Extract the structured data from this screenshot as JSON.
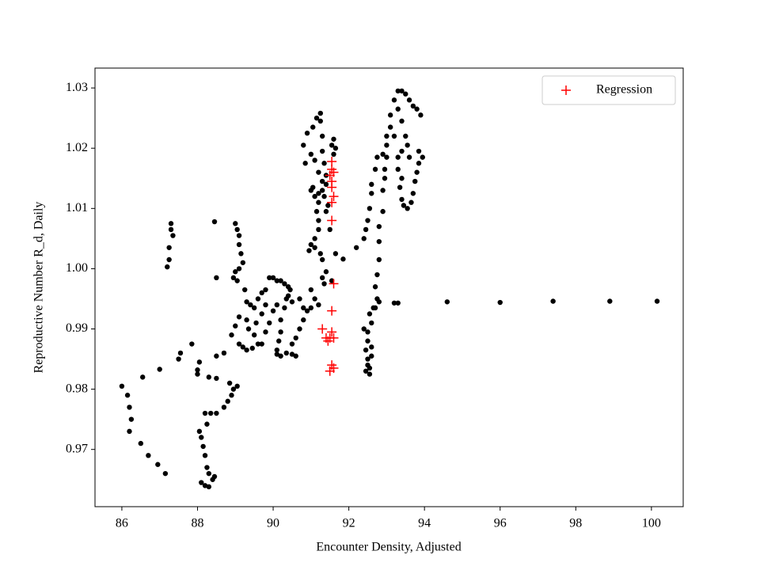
{
  "chart_data": {
    "type": "scatter",
    "xlabel": "Encounter Density, Adjusted",
    "ylabel": "Reproductive Number R_d, Daily",
    "xlim": [
      85.29,
      100.84
    ],
    "ylim": [
      0.9605,
      1.0333
    ],
    "xticks": [
      86,
      88,
      90,
      92,
      94,
      96,
      98,
      100
    ],
    "yticks": [
      0.97,
      0.98,
      0.99,
      {
        "value": 1.0,
        "label": "1.00"
      },
      1.01,
      1.02,
      1.03
    ],
    "grid": false,
    "legend": "upper right",
    "series": [
      {
        "color": "#000000",
        "marker": "o",
        "x": [
          86.0,
          86.15,
          86.2,
          86.25,
          86.2,
          86.5,
          86.7,
          86.95,
          87.15,
          86.55,
          87.0,
          87.5,
          87.55,
          87.85,
          88.05,
          88.0,
          88.0,
          88.05,
          88.1,
          88.15,
          88.2,
          88.25,
          88.3,
          88.1,
          88.2,
          88.3,
          88.4,
          88.45,
          88.25,
          88.2,
          88.35,
          88.5,
          88.7,
          88.8,
          88.9,
          88.95,
          89.05,
          88.85,
          88.5,
          88.3,
          87.3,
          87.3,
          87.35,
          87.25,
          87.25,
          87.2,
          88.45,
          88.5,
          88.5,
          88.7,
          88.9,
          89.0,
          89.1,
          89.0,
          89.05,
          89.1,
          89.1,
          89.15,
          89.2,
          89.1,
          89.0,
          88.95,
          89.05,
          89.25,
          89.3,
          89.4,
          89.5,
          89.6,
          89.7,
          89.8,
          89.9,
          90.0,
          90.1,
          90.2,
          90.3,
          90.4,
          90.45,
          89.3,
          89.35,
          89.5,
          89.6,
          89.7,
          89.8,
          89.9,
          90.0,
          90.1,
          89.8,
          89.7,
          89.55,
          89.2,
          89.3,
          89.45,
          89.1,
          90.1,
          90.1,
          90.2,
          90.35,
          90.5,
          90.6,
          90.15,
          90.2,
          90.2,
          90.3,
          90.35,
          90.4,
          90.5,
          90.5,
          90.6,
          90.7,
          90.8,
          90.9,
          91.0,
          90.8,
          90.7,
          91.0,
          91.1,
          91.2,
          91.3,
          91.35,
          91.4,
          91.3,
          91.25,
          91.1,
          91.0,
          90.95,
          91.1,
          91.2,
          91.2,
          91.15,
          91.2,
          91.1,
          91.0,
          91.05,
          91.2,
          91.3,
          91.35,
          91.3,
          91.2,
          91.1,
          91.0,
          90.85,
          90.8,
          90.9,
          91.05,
          91.15,
          91.25,
          91.25,
          91.3,
          91.3,
          91.35,
          91.4,
          91.4,
          91.45,
          91.4,
          91.5,
          91.55,
          91.6,
          91.65,
          91.6,
          91.65,
          91.85,
          91.55,
          92.2,
          92.4,
          92.45,
          92.5,
          92.55,
          92.6,
          92.6,
          92.7,
          92.75,
          92.9,
          93.0,
          93.0,
          93.1,
          93.1,
          93.2,
          93.3,
          93.4,
          93.5,
          93.6,
          93.7,
          93.8,
          93.9,
          93.3,
          93.4,
          93.5,
          93.55,
          93.4,
          93.3,
          93.3,
          93.4,
          93.35,
          93.4,
          93.45,
          93.55,
          93.65,
          93.7,
          93.75,
          93.8,
          93.85,
          93.95,
          93.85,
          93.6,
          93.2,
          93.0,
          92.95,
          92.95,
          92.9,
          92.9,
          92.8,
          92.8,
          92.8,
          92.75,
          92.7,
          92.75,
          92.65,
          92.55,
          92.6,
          92.5,
          92.5,
          92.45,
          92.5,
          92.5,
          92.45,
          92.55,
          92.55,
          92.6,
          92.6,
          92.4,
          92.7,
          92.8,
          93.2,
          93.3,
          94.6,
          96.0,
          97.4,
          98.9,
          100.15
        ],
        "values": [
          0.9805,
          0.979,
          0.977,
          0.975,
          0.973,
          0.971,
          0.969,
          0.9675,
          0.966,
          0.982,
          0.9833,
          0.985,
          0.986,
          0.9875,
          0.9845,
          0.9832,
          0.9825,
          0.973,
          0.972,
          0.9705,
          0.969,
          0.967,
          0.966,
          0.9645,
          0.964,
          0.9638,
          0.965,
          0.9655,
          0.9742,
          0.976,
          0.976,
          0.976,
          0.977,
          0.978,
          0.979,
          0.98,
          0.9805,
          0.981,
          0.9818,
          0.982,
          1.0075,
          1.0065,
          1.0055,
          1.0035,
          1.0015,
          1.0003,
          1.0078,
          0.9985,
          0.9855,
          0.986,
          0.989,
          0.9905,
          0.992,
          1.0075,
          1.0065,
          1.0055,
          1.004,
          1.0025,
          1.001,
          1.0,
          0.9995,
          0.9985,
          0.998,
          0.9965,
          0.9945,
          0.994,
          0.9935,
          0.995,
          0.996,
          0.9965,
          0.9985,
          0.9985,
          0.998,
          0.998,
          0.9975,
          0.997,
          0.9965,
          0.9915,
          0.99,
          0.989,
          0.9875,
          0.9875,
          0.9895,
          0.991,
          0.993,
          0.994,
          0.994,
          0.9925,
          0.991,
          0.987,
          0.9865,
          0.9868,
          0.9875,
          0.9865,
          0.9858,
          0.9855,
          0.986,
          0.9858,
          0.9855,
          0.988,
          0.9895,
          0.9915,
          0.9935,
          0.995,
          0.9955,
          0.9945,
          0.9875,
          0.9885,
          0.99,
          0.9915,
          0.993,
          0.9935,
          0.9935,
          0.995,
          0.9965,
          0.995,
          0.994,
          0.9985,
          0.9975,
          0.9995,
          1.0015,
          1.0025,
          1.0035,
          1.004,
          1.003,
          1.005,
          1.0065,
          1.008,
          1.0095,
          1.011,
          1.012,
          1.013,
          1.0135,
          1.0125,
          1.013,
          1.012,
          1.0145,
          1.016,
          1.018,
          1.019,
          1.0175,
          1.0205,
          1.0225,
          1.0235,
          1.025,
          1.0258,
          1.0245,
          1.022,
          1.0195,
          1.0175,
          1.0155,
          1.014,
          1.0105,
          1.0095,
          1.0065,
          1.0205,
          1.0215,
          1.02,
          1.019,
          1.0025,
          1.0016,
          0.998,
          1.0035,
          1.005,
          1.0065,
          1.008,
          1.01,
          1.0125,
          1.014,
          1.0165,
          1.0185,
          1.019,
          1.0205,
          1.022,
          1.0235,
          1.0255,
          1.028,
          1.0295,
          1.0295,
          1.029,
          1.028,
          1.027,
          1.0265,
          1.0255,
          1.0265,
          1.0245,
          1.022,
          1.0205,
          1.0195,
          1.0185,
          1.0165,
          1.015,
          1.0135,
          1.0115,
          1.0105,
          1.01,
          1.011,
          1.0125,
          1.0145,
          1.016,
          1.0175,
          1.0185,
          1.0195,
          1.0185,
          1.022,
          1.0185,
          1.0165,
          1.015,
          1.013,
          1.0095,
          1.007,
          1.0045,
          1.0015,
          0.999,
          0.997,
          0.995,
          0.9935,
          0.9925,
          0.991,
          0.9895,
          0.988,
          0.9865,
          0.985,
          0.984,
          0.983,
          0.9825,
          0.9835,
          0.9855,
          0.987,
          0.99,
          0.9935,
          0.9945,
          0.9943,
          0.9943,
          0.9945,
          0.9944,
          0.9946,
          0.9946,
          0.9946
        ]
      },
      {
        "name": "Regression",
        "color": "#ff0000",
        "marker": "+",
        "x": [
          91.55,
          91.55,
          91.6,
          91.5,
          91.55,
          91.55,
          91.6,
          91.55,
          91.55,
          91.6,
          91.55,
          91.55,
          91.5,
          91.6,
          91.45,
          91.4,
          91.3,
          91.55,
          91.6,
          91.5
        ],
        "values": [
          1.0178,
          1.0165,
          1.016,
          1.0155,
          1.0145,
          1.0135,
          1.012,
          1.011,
          1.008,
          0.9975,
          0.993,
          0.9895,
          0.9885,
          0.9885,
          0.988,
          0.9885,
          0.99,
          0.984,
          0.9835,
          0.983
        ]
      }
    ]
  }
}
